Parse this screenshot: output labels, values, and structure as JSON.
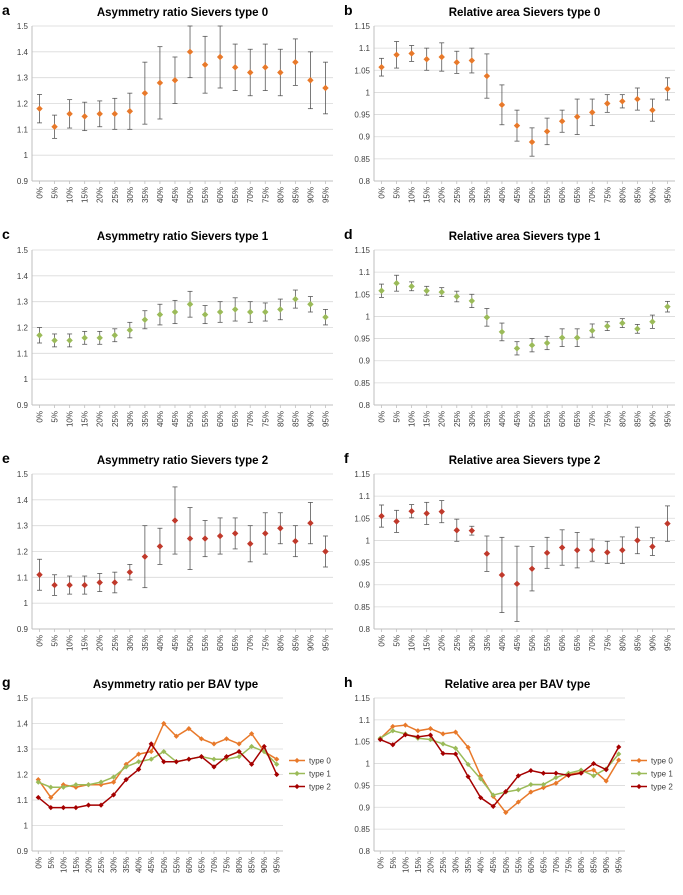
{
  "figure": {
    "x_categories": [
      "0%",
      "5%",
      "10%",
      "15%",
      "20%",
      "25%",
      "30%",
      "35%",
      "40%",
      "45%",
      "50%",
      "55%",
      "60%",
      "65%",
      "70%",
      "75%",
      "80%",
      "85%",
      "90%",
      "95%"
    ],
    "colors": {
      "type0": "#E8792A",
      "type1": "#9BBB59",
      "type2": "#C0392B",
      "type2_line": "#A50000",
      "error": "#595959",
      "grid": "#D9D9D9",
      "axis": "#BFBFBF"
    }
  },
  "chart_data": [
    {
      "id": "a",
      "label": "a",
      "type": "scatter",
      "title": "Asymmetry ratio Sievers type 0",
      "ylim": [
        0.9,
        1.5
      ],
      "yticks": [
        "0.9",
        "1",
        "1.1",
        "1.2",
        "1.3",
        "1.4",
        "1.5"
      ],
      "ytick_values": [
        0.9,
        1.0,
        1.1,
        1.2,
        1.3,
        1.4,
        1.5
      ],
      "color": "#E8792A",
      "series": [
        {
          "name": "type 0",
          "values": [
            1.18,
            1.11,
            1.16,
            1.15,
            1.16,
            1.16,
            1.17,
            1.24,
            1.28,
            1.29,
            1.4,
            1.35,
            1.38,
            1.34,
            1.32,
            1.34,
            1.32,
            1.36,
            1.29,
            1.26
          ],
          "error": [
            0.055,
            0.045,
            0.055,
            0.055,
            0.05,
            0.06,
            0.07,
            0.12,
            0.14,
            0.09,
            0.1,
            0.11,
            0.12,
            0.09,
            0.09,
            0.09,
            0.09,
            0.09,
            0.11,
            0.1
          ]
        }
      ]
    },
    {
      "id": "b",
      "label": "b",
      "type": "scatter",
      "title": "Relative area Sievers type 0",
      "ylim": [
        0.8,
        1.15
      ],
      "yticks": [
        "0.8",
        "0.85",
        "0.9",
        "0.95",
        "1",
        "1.05",
        "1.1",
        "1.15"
      ],
      "ytick_values": [
        0.8,
        0.85,
        0.9,
        0.95,
        1.0,
        1.05,
        1.1,
        1.15
      ],
      "color": "#E8792A",
      "series": [
        {
          "name": "type 0",
          "values": [
            1.057,
            1.085,
            1.088,
            1.075,
            1.08,
            1.068,
            1.072,
            1.037,
            0.972,
            0.925,
            0.888,
            0.912,
            0.935,
            0.945,
            0.955,
            0.975,
            0.98,
            0.985,
            0.96,
            1.008
          ],
          "error": [
            0.02,
            0.03,
            0.018,
            0.025,
            0.032,
            0.025,
            0.028,
            0.05,
            0.045,
            0.035,
            0.032,
            0.03,
            0.025,
            0.04,
            0.03,
            0.02,
            0.015,
            0.025,
            0.025,
            0.025
          ]
        }
      ]
    },
    {
      "id": "c",
      "label": "c",
      "type": "scatter",
      "title": "Asymmetry ratio Sievers type 1",
      "ylim": [
        0.9,
        1.5
      ],
      "yticks": [
        "0.9",
        "1",
        "1.1",
        "1.2",
        "1.3",
        "1.4",
        "1.5"
      ],
      "ytick_values": [
        0.9,
        1.0,
        1.1,
        1.2,
        1.3,
        1.4,
        1.5
      ],
      "color": "#9BBB59",
      "series": [
        {
          "name": "type 1",
          "values": [
            1.17,
            1.15,
            1.15,
            1.16,
            1.16,
            1.17,
            1.19,
            1.23,
            1.25,
            1.26,
            1.29,
            1.25,
            1.26,
            1.27,
            1.26,
            1.26,
            1.27,
            1.31,
            1.29,
            1.24
          ],
          "error": [
            0.03,
            0.025,
            0.025,
            0.025,
            0.025,
            0.025,
            0.03,
            0.035,
            0.04,
            0.045,
            0.05,
            0.035,
            0.04,
            0.045,
            0.04,
            0.035,
            0.04,
            0.035,
            0.03,
            0.03
          ]
        }
      ]
    },
    {
      "id": "d",
      "label": "d",
      "type": "scatter",
      "title": "Relative area Sievers type 1",
      "ylim": [
        0.8,
        1.15
      ],
      "yticks": [
        "0.8",
        "0.85",
        "0.9",
        "0.95",
        "1",
        "1.05",
        "1.1",
        "1.15"
      ],
      "ytick_values": [
        0.8,
        0.85,
        0.9,
        0.95,
        1.0,
        1.05,
        1.1,
        1.15
      ],
      "color": "#9BBB59",
      "series": [
        {
          "name": "type 1",
          "values": [
            1.058,
            1.075,
            1.068,
            1.058,
            1.055,
            1.045,
            1.035,
            0.998,
            0.965,
            0.928,
            0.935,
            0.94,
            0.952,
            0.952,
            0.968,
            0.978,
            0.985,
            0.972,
            0.988,
            1.022
          ],
          "error": [
            0.015,
            0.018,
            0.01,
            0.01,
            0.01,
            0.012,
            0.015,
            0.02,
            0.02,
            0.015,
            0.015,
            0.015,
            0.02,
            0.02,
            0.015,
            0.01,
            0.01,
            0.01,
            0.015,
            0.012
          ]
        }
      ]
    },
    {
      "id": "e",
      "label": "e",
      "type": "scatter",
      "title": "Asymmetry ratio Sievers type 2",
      "ylim": [
        0.9,
        1.5
      ],
      "yticks": [
        "0.9",
        "1",
        "1.1",
        "1.2",
        "1.3",
        "1.4",
        "1.5"
      ],
      "ytick_values": [
        0.9,
        1.0,
        1.1,
        1.2,
        1.3,
        1.4,
        1.5
      ],
      "color": "#C0392B",
      "series": [
        {
          "name": "type 2",
          "values": [
            1.11,
            1.07,
            1.07,
            1.07,
            1.08,
            1.08,
            1.12,
            1.18,
            1.22,
            1.32,
            1.25,
            1.25,
            1.26,
            1.27,
            1.23,
            1.27,
            1.29,
            1.24,
            1.31,
            1.2
          ],
          "error": [
            0.06,
            0.04,
            0.035,
            0.035,
            0.035,
            0.04,
            0.03,
            0.12,
            0.07,
            0.13,
            0.12,
            0.07,
            0.07,
            0.06,
            0.07,
            0.08,
            0.06,
            0.06,
            0.08,
            0.06
          ]
        }
      ]
    },
    {
      "id": "f",
      "label": "f",
      "type": "scatter",
      "title": "Relative area Sievers type 2",
      "ylim": [
        0.8,
        1.15
      ],
      "yticks": [
        "0.8",
        "0.85",
        "0.9",
        "0.95",
        "1",
        "1.05",
        "1.1",
        "1.15"
      ],
      "ytick_values": [
        0.8,
        0.85,
        0.9,
        0.95,
        1.0,
        1.05,
        1.1,
        1.15
      ],
      "color": "#C0392B",
      "series": [
        {
          "name": "type 2",
          "values": [
            1.055,
            1.043,
            1.066,
            1.061,
            1.065,
            1.023,
            1.022,
            0.97,
            0.922,
            0.902,
            0.936,
            0.972,
            0.984,
            0.978,
            0.978,
            0.973,
            0.978,
            1.0,
            0.986,
            1.038
          ],
          "error": [
            0.025,
            0.025,
            0.015,
            0.025,
            0.025,
            0.025,
            0.01,
            0.04,
            0.085,
            0.085,
            0.05,
            0.035,
            0.04,
            0.04,
            0.025,
            0.025,
            0.03,
            0.03,
            0.02,
            0.04
          ]
        }
      ]
    },
    {
      "id": "g",
      "label": "g",
      "type": "line",
      "title": "Asymmetry ratio per BAV type",
      "ylim": [
        0.9,
        1.5
      ],
      "yticks": [
        "0.9",
        "1",
        "1.1",
        "1.2",
        "1.3",
        "1.4",
        "1.5"
      ],
      "ytick_values": [
        0.9,
        1.0,
        1.1,
        1.2,
        1.3,
        1.4,
        1.5
      ],
      "legend": "right",
      "series": [
        {
          "name": "type 0",
          "color": "#E8792A",
          "values": [
            1.18,
            1.11,
            1.16,
            1.15,
            1.16,
            1.16,
            1.17,
            1.24,
            1.28,
            1.29,
            1.4,
            1.35,
            1.38,
            1.34,
            1.32,
            1.34,
            1.32,
            1.36,
            1.29,
            1.26
          ]
        },
        {
          "name": "type 1",
          "color": "#9BBB59",
          "values": [
            1.17,
            1.15,
            1.15,
            1.16,
            1.16,
            1.17,
            1.19,
            1.23,
            1.25,
            1.26,
            1.29,
            1.25,
            1.26,
            1.27,
            1.26,
            1.26,
            1.27,
            1.31,
            1.29,
            1.24
          ]
        },
        {
          "name": "type 2",
          "color": "#A50000",
          "values": [
            1.11,
            1.07,
            1.07,
            1.07,
            1.08,
            1.08,
            1.12,
            1.18,
            1.22,
            1.32,
            1.25,
            1.25,
            1.26,
            1.27,
            1.23,
            1.27,
            1.29,
            1.24,
            1.31,
            1.2
          ]
        }
      ]
    },
    {
      "id": "h",
      "label": "h",
      "type": "line",
      "title": "Relative area per BAV type",
      "ylim": [
        0.8,
        1.15
      ],
      "yticks": [
        "0.8",
        "0.85",
        "0.9",
        "0.95",
        "1",
        "1.05",
        "1.1",
        "1.15"
      ],
      "ytick_values": [
        0.8,
        0.85,
        0.9,
        0.95,
        1.0,
        1.05,
        1.1,
        1.15
      ],
      "legend": "right",
      "series": [
        {
          "name": "type 0",
          "color": "#E8792A",
          "values": [
            1.057,
            1.085,
            1.088,
            1.075,
            1.08,
            1.068,
            1.072,
            1.037,
            0.972,
            0.925,
            0.888,
            0.912,
            0.935,
            0.945,
            0.955,
            0.975,
            0.98,
            0.985,
            0.96,
            1.008
          ]
        },
        {
          "name": "type 1",
          "color": "#9BBB59",
          "values": [
            1.058,
            1.075,
            1.068,
            1.058,
            1.055,
            1.045,
            1.035,
            0.998,
            0.965,
            0.928,
            0.935,
            0.94,
            0.952,
            0.952,
            0.968,
            0.978,
            0.985,
            0.972,
            0.988,
            1.022
          ]
        },
        {
          "name": "type 2",
          "color": "#A50000",
          "values": [
            1.055,
            1.043,
            1.066,
            1.061,
            1.065,
            1.023,
            1.022,
            0.97,
            0.922,
            0.902,
            0.936,
            0.972,
            0.984,
            0.978,
            0.978,
            0.973,
            0.978,
            1.0,
            0.986,
            1.038
          ]
        }
      ]
    }
  ]
}
